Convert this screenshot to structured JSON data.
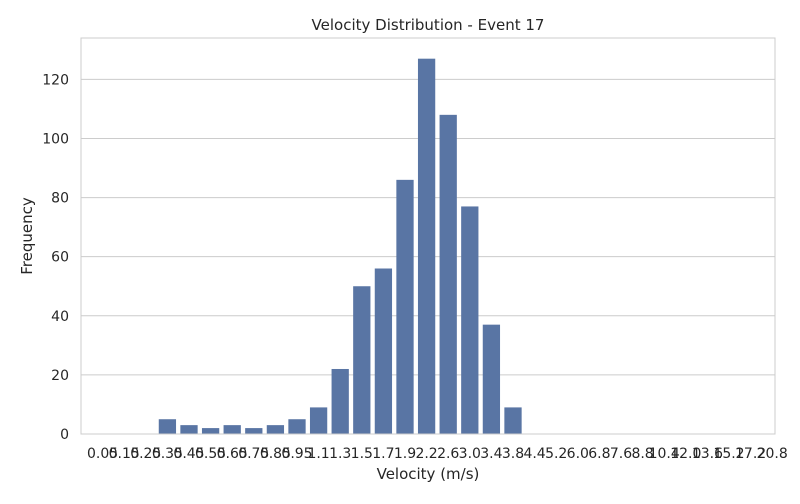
{
  "chart_data": {
    "type": "bar",
    "title": "Velocity Distribution - Event 17",
    "xlabel": "Velocity (m/s)",
    "ylabel": "Frequency",
    "categories": [
      "0.05",
      "0.15",
      "0.25",
      "0.35",
      "0.45",
      "0.55",
      "0.65",
      "0.75",
      "0.85",
      "0.95",
      "1.1",
      "1.3",
      "1.5",
      "1.7",
      "1.9",
      "2.2",
      "2.6",
      "3.0",
      "3.4",
      "3.8",
      "4.4",
      "5.2",
      "6.0",
      "6.8",
      "7.6",
      "8.8",
      "10.4",
      "12.0",
      "13.6",
      "15.2",
      "17.2",
      "20.8"
    ],
    "values": [
      0,
      0,
      0,
      5,
      3,
      2,
      3,
      2,
      3,
      5,
      9,
      22,
      50,
      56,
      86,
      127,
      108,
      77,
      37,
      9,
      0,
      0,
      0,
      0,
      0,
      0,
      0,
      0,
      0,
      0,
      0,
      0
    ],
    "ylim": [
      0,
      134
    ],
    "yticks": [
      0,
      20,
      40,
      60,
      80,
      100,
      120
    ],
    "grid": "horizontal",
    "bar_color": "#5975a4",
    "grid_color": "#cccccc",
    "spine_color": "#cccccc"
  }
}
